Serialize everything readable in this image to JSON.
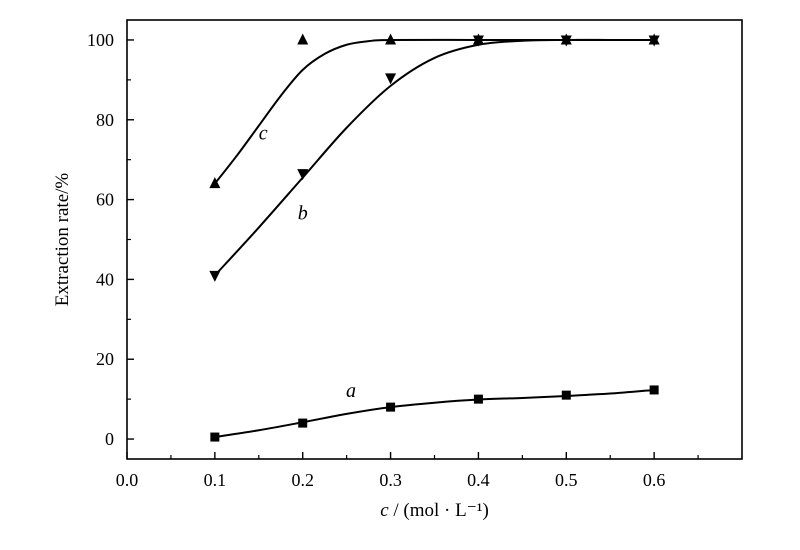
{
  "chart_data": {
    "type": "line",
    "xlabel_var": "c",
    "xlabel_rest": " / (mol · L⁻¹)",
    "ylabel": "Extraction rate/%",
    "xlim": [
      0.0,
      0.7
    ],
    "ylim": [
      -5,
      105
    ],
    "xticks": [
      "0.0",
      "0.1",
      "0.2",
      "0.3",
      "0.4",
      "0.5",
      "0.6"
    ],
    "yticks": [
      "0",
      "20",
      "40",
      "60",
      "80",
      "100"
    ],
    "grid": false,
    "series": [
      {
        "label": "a",
        "marker": "square",
        "x": [
          0.1,
          0.2,
          0.3,
          0.4,
          0.5,
          0.6
        ],
        "y": [
          0.5,
          4,
          8,
          10,
          11,
          12.3
        ],
        "curve": [
          [
            0.1,
            0.5
          ],
          [
            0.15,
            2.2
          ],
          [
            0.2,
            4.2
          ],
          [
            0.25,
            6.3
          ],
          [
            0.3,
            8.0
          ],
          [
            0.35,
            9.1
          ],
          [
            0.4,
            9.9
          ],
          [
            0.45,
            10.3
          ],
          [
            0.5,
            10.8
          ],
          [
            0.55,
            11.4
          ],
          [
            0.6,
            12.3
          ]
        ]
      },
      {
        "label": "b",
        "marker": "triangle-down",
        "x": [
          0.1,
          0.2,
          0.3,
          0.4,
          0.5,
          0.6
        ],
        "y": [
          41,
          66.5,
          90.5,
          100,
          100,
          100
        ],
        "curve": [
          [
            0.1,
            41
          ],
          [
            0.15,
            53
          ],
          [
            0.2,
            65.5
          ],
          [
            0.25,
            78
          ],
          [
            0.3,
            88.5
          ],
          [
            0.35,
            95.5
          ],
          [
            0.4,
            98.8
          ],
          [
            0.45,
            99.8
          ],
          [
            0.5,
            100
          ],
          [
            0.55,
            100
          ],
          [
            0.6,
            100
          ]
        ]
      },
      {
        "label": "c",
        "marker": "triangle-up",
        "x": [
          0.1,
          0.2,
          0.3,
          0.4,
          0.5,
          0.6
        ],
        "y": [
          64,
          100,
          100,
          100,
          100,
          100
        ],
        "curve": [
          [
            0.1,
            64
          ],
          [
            0.125,
            71
          ],
          [
            0.15,
            78.5
          ],
          [
            0.175,
            86
          ],
          [
            0.2,
            92.5
          ],
          [
            0.225,
            96.5
          ],
          [
            0.25,
            98.8
          ],
          [
            0.275,
            99.7
          ],
          [
            0.3,
            100
          ],
          [
            0.4,
            100
          ],
          [
            0.5,
            100
          ],
          [
            0.6,
            100
          ]
        ]
      }
    ],
    "annotations": [
      {
        "text": "a",
        "x": 0.255,
        "y": 10.5
      },
      {
        "text": "b",
        "x": 0.2,
        "y": 55
      },
      {
        "text": "c",
        "x": 0.155,
        "y": 75
      }
    ]
  }
}
